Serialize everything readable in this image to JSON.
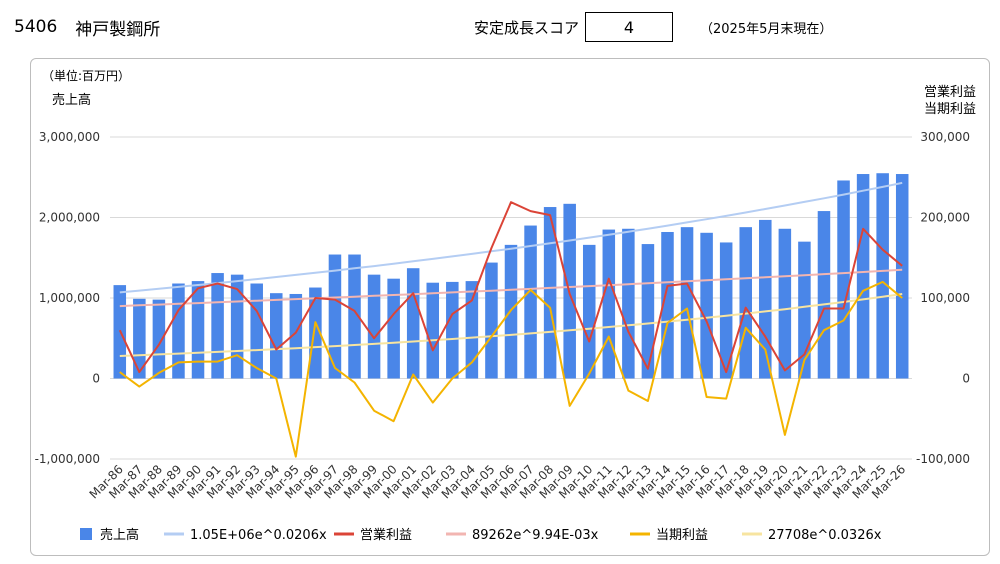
{
  "header": {
    "code": "5406",
    "name": "神戸製鋼所",
    "score_label": "安定成長スコア",
    "score_value": "4",
    "as_of": "（2025年5月末現在）"
  },
  "chart_data": {
    "type": "bar+line",
    "unit_label": "（単位:百万円）",
    "y_left_label": "売上高",
    "y_right_label_1": "営業利益",
    "y_right_label_2": "当期利益",
    "y_left_ticks": [
      "3,000,000",
      "2,000,000",
      "1,000,000",
      "0",
      "-1,000,000"
    ],
    "y_right_ticks": [
      "300,000",
      "200,000",
      "100,000",
      "0",
      "-100,000"
    ],
    "y_left_range": [
      -1000000,
      3000000
    ],
    "y_right_range": [
      -100000,
      300000
    ],
    "grid": true,
    "legend_position": "bottom",
    "categories": [
      "Mar-86",
      "Mar-87",
      "Mar-88",
      "Mar-89",
      "Mar-90",
      "Mar-91",
      "Mar-92",
      "Mar-93",
      "Mar-94",
      "Mar-95",
      "Mar-96",
      "Mar-97",
      "Mar-98",
      "Mar-99",
      "Mar-00",
      "Mar-01",
      "Mar-02",
      "Mar-03",
      "Mar-04",
      "Mar-05",
      "Mar-06",
      "Mar-07",
      "Mar-08",
      "Mar-09",
      "Mar-10",
      "Mar-11",
      "Mar-12",
      "Mar-13",
      "Mar-14",
      "Mar-15",
      "Mar-16",
      "Mar-17",
      "Mar-18",
      "Mar-19",
      "Mar-20",
      "Mar-21",
      "Mar-22",
      "Mar-23",
      "Mar-24",
      "Mar-25",
      "Mar-26"
    ],
    "series": [
      {
        "name": "売上高",
        "kind": "bar",
        "axis": "left",
        "color": "#4a86e8",
        "values": [
          1160000,
          990000,
          980000,
          1180000,
          1210000,
          1310000,
          1290000,
          1180000,
          1060000,
          1050000,
          1130000,
          1540000,
          1540000,
          1290000,
          1240000,
          1370000,
          1190000,
          1200000,
          1210000,
          1440000,
          1660000,
          1900000,
          2130000,
          2170000,
          1660000,
          1850000,
          1860000,
          1670000,
          1820000,
          1880000,
          1810000,
          1690000,
          1880000,
          1970000,
          1860000,
          1700000,
          2080000,
          2460000,
          2540000,
          2550000,
          2540000
        ]
      },
      {
        "name": "営業利益",
        "kind": "line",
        "axis": "right",
        "color": "#db4437",
        "values": [
          60000,
          8000,
          42000,
          85000,
          112000,
          118000,
          111000,
          84000,
          36000,
          57000,
          100000,
          98000,
          84000,
          50000,
          80000,
          106000,
          35000,
          80000,
          97000,
          162000,
          219000,
          208000,
          203000,
          105000,
          46000,
          124000,
          58000,
          12000,
          115000,
          118000,
          71000,
          8000,
          88000,
          52000,
          10000,
          30000,
          87000,
          87000,
          186000,
          160000,
          140000
        ]
      },
      {
        "name": "当期利益",
        "kind": "line",
        "axis": "right",
        "color": "#f4b400",
        "values": [
          8000,
          -10000,
          7000,
          20000,
          21000,
          21000,
          29000,
          13000,
          0,
          -97000,
          70000,
          13000,
          -5000,
          -40000,
          -53000,
          5000,
          -30000,
          0,
          20000,
          52000,
          85000,
          110000,
          88000,
          -34000,
          6000,
          52000,
          -15000,
          -28000,
          69000,
          87000,
          -23000,
          -25000,
          63000,
          36000,
          -70000,
          23000,
          60000,
          72000,
          109000,
          120000,
          100000
        ]
      },
      {
        "name": "1.05E+06e^0.0206x",
        "kind": "trend",
        "axis": "left",
        "color": "#b4cdf3",
        "start": 1070000,
        "end": 2430000
      },
      {
        "name": "89262e^9.94E-03x",
        "kind": "trend",
        "axis": "right",
        "color": "#f2b5b1",
        "start": 90000,
        "end": 135000
      },
      {
        "name": "27708e^0.0326x",
        "kind": "trend",
        "axis": "right",
        "color": "#f7e4a0",
        "start": 28000,
        "end": 105000
      }
    ]
  }
}
